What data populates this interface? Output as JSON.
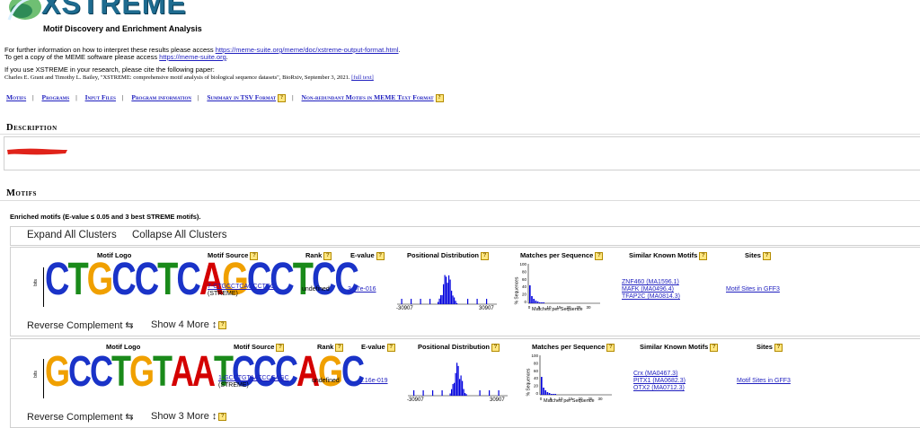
{
  "header": {
    "brand": "XSTREME",
    "tagline": "Motif Discovery and Enrichment Analysis"
  },
  "info": {
    "line1_prefix": "For further information on how to interpret these results please access ",
    "line1_link": "https://meme-suite.org/meme/doc/xstreme-output-format.html",
    "line1_suffix": ".",
    "line2_prefix": "To get a copy of the MEME software please access ",
    "line2_link": "https://meme-suite.org",
    "line2_suffix": ".",
    "cite_intro": "If you use XSTREME in your research, please cite the following paper:",
    "citation": "Charles E. Grant and Timothy L. Bailey, \"XSTREME: comprehensive motif analysis of biological sequence datasets\", BioRxiv, September 3, 2021.",
    "citation_link": "[full text]"
  },
  "nav": {
    "items": [
      "Motifs",
      "Programs",
      "Input Files",
      "Program information",
      "Summary in TSV Format",
      "Non-redundant Motifs in MEME Text Format"
    ],
    "help": "?"
  },
  "description": {
    "heading": "Description"
  },
  "motifs": {
    "heading": "Motifs",
    "enriched_note": "Enriched motifs (E-value ≤ 0.05 and 3 best STREME motifs).",
    "expand_label": "Expand All Clusters",
    "collapse_label": "Collapse All Clusters",
    "columns": {
      "logo": "Motif Logo",
      "source": "Motif Source",
      "rank": "Rank",
      "evalue": "E-value",
      "positional": "Positional Distribution",
      "matches": "Matches per Sequence",
      "similar": "Similar Known Motifs",
      "sites": "Sites"
    },
    "rows": [
      {
        "logo_letters": "CTGCCTCAGCCTCC",
        "bits_label": "bits",
        "source_link": "7-CTGCCTCAGCCTCC",
        "source_tool": "(STREME)",
        "rank": "undefined",
        "evalue": "3.57e-016",
        "pos_min": "-30907",
        "pos_max": "30907",
        "match_axis_label": "Matches per Sequence",
        "match_y_label": "% Sequences",
        "similar": [
          "ZNF460 (MA1596.1)",
          "MAFK (MA0496.4)",
          "TFAP2C (MA0814.3)"
        ],
        "sites_link": "Motif Sites in GFF3",
        "reverse_label": "Reverse Complement ⇆",
        "more_label": "Show 4 More ↕"
      },
      {
        "logo_letters": "GCCTGTAATCCCAGC",
        "bits_label": "bits",
        "source_link": "1-GCCTGTAATCCCAGC",
        "source_tool": "(STREME)",
        "rank": "undefined",
        "evalue": "1.16e-019",
        "pos_min": "-30907",
        "pos_max": "30907",
        "match_axis_label": "Matches per Sequence",
        "match_y_label": "% Sequences",
        "similar": [
          "Crx (MA0467.3)",
          "PITX1 (MA0682.3)",
          "OTX2 (MA0712.3)"
        ],
        "sites_link": "Motif Sites in GFF3",
        "reverse_label": "Reverse Complement ⇆",
        "more_label": "Show 3 More ↕"
      }
    ]
  },
  "colors": {
    "brand": "#1e6b8f",
    "link": "#1f1fbf",
    "plot_bars": "#0000dd",
    "redaction": "#e0231a",
    "A": "#d40000",
    "C": "#1a33c8",
    "G": "#f0a000",
    "T": "#1a8a1a"
  }
}
